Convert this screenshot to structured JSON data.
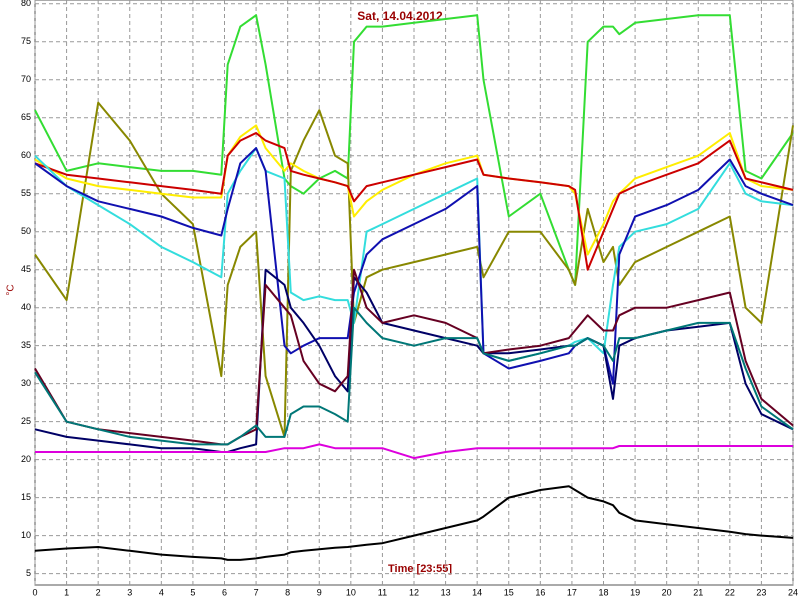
{
  "chart_data": {
    "type": "line",
    "title": "Sat, 14.04.2012",
    "xlabel": "Time [23:55]",
    "ylabel": "°C",
    "x": [
      0,
      1,
      2,
      3,
      4,
      5,
      5.9,
      6.1,
      6.5,
      7,
      7.3,
      7.9,
      8.1,
      8.5,
      9,
      9.5,
      9.9,
      10.1,
      10.5,
      11,
      12,
      13,
      14,
      14.2,
      15,
      16,
      16.9,
      17.1,
      17.5,
      18,
      18.3,
      18.5,
      19,
      20,
      21,
      22,
      22.5,
      23,
      24
    ],
    "xlim": [
      0,
      24
    ],
    "xticks": [
      0,
      1,
      2,
      3,
      4,
      5,
      6,
      7,
      8,
      9,
      10,
      11,
      12,
      13,
      14,
      15,
      16,
      17,
      18,
      19,
      20,
      21,
      22,
      23,
      24
    ],
    "ylim": [
      3.5,
      80.5
    ],
    "yticks": [
      5,
      10,
      15,
      20,
      25,
      30,
      35,
      40,
      45,
      50,
      55,
      60,
      65,
      70,
      75,
      80
    ],
    "grid": true,
    "series": [
      {
        "color": "#33dd33",
        "values": [
          66,
          58,
          59,
          58.5,
          58,
          58,
          57.5,
          72,
          77,
          78.5,
          72,
          57,
          56,
          55,
          57,
          58,
          57,
          75,
          77,
          77,
          77.5,
          78,
          78.5,
          70,
          52,
          55,
          45,
          43,
          75,
          77,
          77,
          76,
          77.5,
          78,
          78.5,
          78.5,
          58,
          57,
          63
        ]
      },
      {
        "color": "#888800",
        "values": [
          47,
          41,
          67,
          62,
          55,
          51,
          31,
          43,
          48,
          50,
          31,
          23,
          58,
          62,
          66,
          60,
          59,
          38,
          44,
          45,
          46,
          47,
          48,
          44,
          50,
          50,
          45,
          43,
          53,
          46,
          48,
          43,
          46,
          48,
          50,
          52,
          40,
          38,
          64
        ]
      },
      {
        "color": "#ffee00",
        "values": [
          59.5,
          57,
          56,
          55.5,
          55,
          54.5,
          54.5,
          60,
          62.5,
          64,
          61,
          58,
          59,
          58,
          57,
          56.5,
          56,
          52,
          54,
          55.5,
          57.5,
          59,
          60,
          57.5,
          57,
          56.5,
          56,
          55,
          47,
          51,
          54,
          55,
          57,
          58.5,
          60,
          63,
          57,
          56,
          55.5
        ]
      },
      {
        "color": "#cc0000",
        "values": [
          59,
          57.5,
          57,
          56.5,
          56,
          55.5,
          55,
          60,
          62,
          63,
          62,
          61,
          58,
          57.5,
          57,
          56.5,
          56,
          54,
          56,
          56.5,
          57.5,
          58.5,
          59.5,
          57.5,
          57,
          56.5,
          56,
          55.5,
          45,
          50,
          53,
          55,
          56,
          57.5,
          59,
          62,
          57,
          56.5,
          55.5
        ]
      },
      {
        "color": "#33dddd",
        "values": [
          60,
          56,
          53.5,
          51,
          48,
          46,
          44,
          55,
          58,
          61,
          58,
          57,
          42,
          41,
          41.5,
          41,
          41,
          38,
          50,
          51,
          53,
          55,
          57,
          34,
          33,
          34,
          35,
          35.5,
          36,
          34,
          43,
          48,
          50,
          51,
          53,
          59,
          55,
          54,
          53.5
        ]
      },
      {
        "color": "#1010b0",
        "values": [
          59,
          56,
          54,
          53,
          52,
          50.5,
          49.5,
          53,
          59,
          61,
          58,
          35,
          34,
          35,
          36,
          36,
          36,
          42,
          47,
          49,
          51,
          53,
          56,
          34,
          32,
          33,
          34,
          35,
          36,
          35,
          30,
          47,
          52,
          53.5,
          55.5,
          59.5,
          56,
          55,
          53.5
        ]
      },
      {
        "color": "#000066",
        "values": [
          24,
          23,
          22.5,
          22,
          21.5,
          21.5,
          21,
          21,
          21.5,
          22,
          45,
          43,
          40,
          38,
          35,
          31,
          29,
          44,
          42,
          38,
          37,
          36,
          35,
          34,
          34,
          34.5,
          35,
          35,
          36,
          35,
          28,
          35,
          36,
          37,
          37.5,
          38,
          30,
          26,
          24
        ]
      },
      {
        "color": "#660022",
        "values": [
          32,
          25,
          24,
          23.5,
          23,
          22.5,
          22,
          22,
          23,
          24,
          43,
          40,
          39,
          33,
          30,
          29,
          31,
          45,
          40,
          38,
          39,
          38,
          36,
          34,
          34.5,
          35,
          36,
          37,
          39,
          37,
          37,
          39,
          40,
          40,
          41,
          42,
          33,
          28,
          24.5
        ]
      },
      {
        "color": "#007777",
        "values": [
          31.5,
          25,
          24,
          23,
          22.5,
          22,
          22,
          22,
          23,
          24.5,
          23,
          23,
          26,
          27,
          27,
          26,
          25,
          40,
          38,
          36,
          35,
          36,
          36,
          34,
          33,
          34,
          35,
          35,
          36,
          35,
          33,
          36,
          36,
          37,
          38,
          38,
          32,
          27,
          24
        ]
      },
      {
        "color": "#dd00dd",
        "values": [
          21,
          21,
          21,
          21,
          21,
          21,
          21,
          21,
          21,
          21,
          21,
          21.5,
          21.5,
          21.5,
          22,
          21.5,
          21.5,
          21.5,
          21.5,
          21.5,
          20.2,
          21,
          21.5,
          21.5,
          21.5,
          21.5,
          21.5,
          21.5,
          21.5,
          21.5,
          21.5,
          21.8,
          21.8,
          21.8,
          21.8,
          21.8,
          21.8,
          21.8,
          21.8
        ]
      },
      {
        "color": "#000000",
        "values": [
          8,
          8.3,
          8.5,
          8,
          7.5,
          7.2,
          7,
          6.8,
          6.8,
          7,
          7.2,
          7.5,
          7.8,
          8,
          8.2,
          8.4,
          8.5,
          8.6,
          8.8,
          9,
          10,
          11,
          12,
          12.5,
          15,
          16,
          16.5,
          16,
          15,
          14.5,
          14,
          13,
          12,
          11.5,
          11,
          10.5,
          10.2,
          10,
          9.7
        ]
      }
    ]
  }
}
